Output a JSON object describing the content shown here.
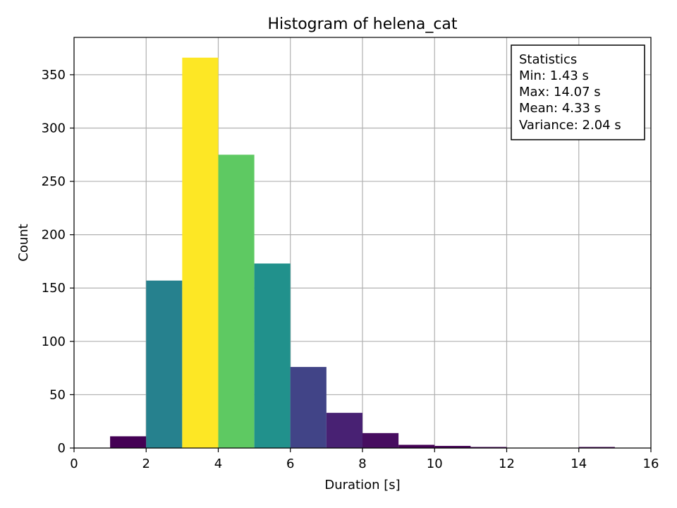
{
  "chart_data": {
    "type": "bar",
    "title": "Histogram of helena_cat",
    "xlabel": "Duration [s]",
    "ylabel": "Count",
    "xlim": [
      0,
      16
    ],
    "ylim": [
      0,
      385
    ],
    "grid": true,
    "x_ticks": [
      0,
      2,
      4,
      6,
      8,
      10,
      12,
      14,
      16
    ],
    "y_ticks": [
      0,
      50,
      100,
      150,
      200,
      250,
      300,
      350
    ],
    "bins": [
      {
        "start": 1,
        "end": 2,
        "count": 11,
        "color": "#440154"
      },
      {
        "start": 2,
        "end": 3,
        "count": 157,
        "color": "#26818e"
      },
      {
        "start": 3,
        "end": 4,
        "count": 366,
        "color": "#fde725"
      },
      {
        "start": 4,
        "end": 5,
        "count": 275,
        "color": "#5ec962"
      },
      {
        "start": 5,
        "end": 6,
        "count": 173,
        "color": "#21918c"
      },
      {
        "start": 6,
        "end": 7,
        "count": 76,
        "color": "#414487"
      },
      {
        "start": 7,
        "end": 8,
        "count": 33,
        "color": "#482173"
      },
      {
        "start": 8,
        "end": 9,
        "count": 14,
        "color": "#470d60"
      },
      {
        "start": 9,
        "end": 10,
        "count": 3,
        "color": "#440154"
      },
      {
        "start": 10,
        "end": 11,
        "count": 2,
        "color": "#440154"
      },
      {
        "start": 11,
        "end": 12,
        "count": 1,
        "color": "#440154"
      },
      {
        "start": 12,
        "end": 13,
        "count": 0,
        "color": "#440154"
      },
      {
        "start": 13,
        "end": 14,
        "count": 0,
        "color": "#440154"
      },
      {
        "start": 14,
        "end": 15,
        "count": 1,
        "color": "#440154"
      },
      {
        "start": 15,
        "end": 16,
        "count": 0,
        "color": "#440154"
      }
    ],
    "stats_box": {
      "position": "top-right",
      "lines": [
        "Statistics",
        "Min: 1.43 s",
        "Max: 14.07 s",
        "Mean: 4.33 s",
        "Variance: 2.04 s"
      ]
    }
  }
}
